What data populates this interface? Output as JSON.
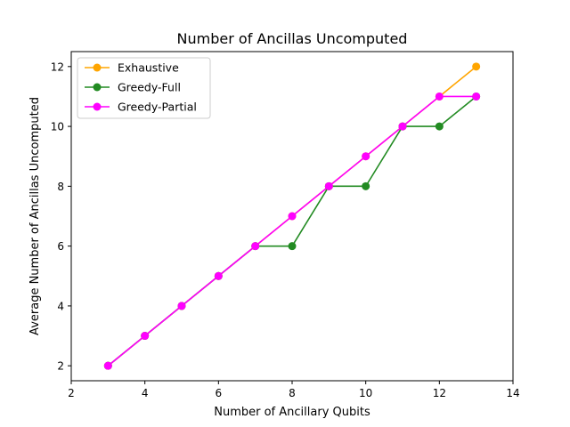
{
  "chart_data": {
    "type": "line",
    "title": "Number of Ancillas Uncomputed",
    "xlabel": "Number of Ancillary Qubits",
    "ylabel": "Average Number of Ancillas Uncomputed",
    "xlim": [
      2,
      14
    ],
    "ylim": [
      1.5,
      12.5
    ],
    "xticks": [
      2,
      4,
      6,
      8,
      10,
      12,
      14
    ],
    "yticks": [
      2,
      4,
      6,
      8,
      10,
      12
    ],
    "grid": false,
    "legend_position": "upper-left",
    "x": [
      3,
      4,
      5,
      6,
      7,
      8,
      9,
      10,
      11,
      12,
      13
    ],
    "series": [
      {
        "name": "Exhaustive",
        "color": "#ffa500",
        "marker": "circle",
        "values": [
          2,
          3,
          4,
          5,
          6,
          7,
          8,
          9,
          10,
          11,
          12
        ]
      },
      {
        "name": "Greedy-Full",
        "color": "#228b22",
        "marker": "circle",
        "values": [
          2,
          3,
          4,
          5,
          6,
          6,
          8,
          8,
          10,
          10,
          11
        ]
      },
      {
        "name": "Greedy-Partial",
        "color": "#ff00ff",
        "marker": "circle",
        "values": [
          2,
          3,
          4,
          5,
          6,
          7,
          8,
          9,
          10,
          11,
          11
        ]
      }
    ]
  }
}
